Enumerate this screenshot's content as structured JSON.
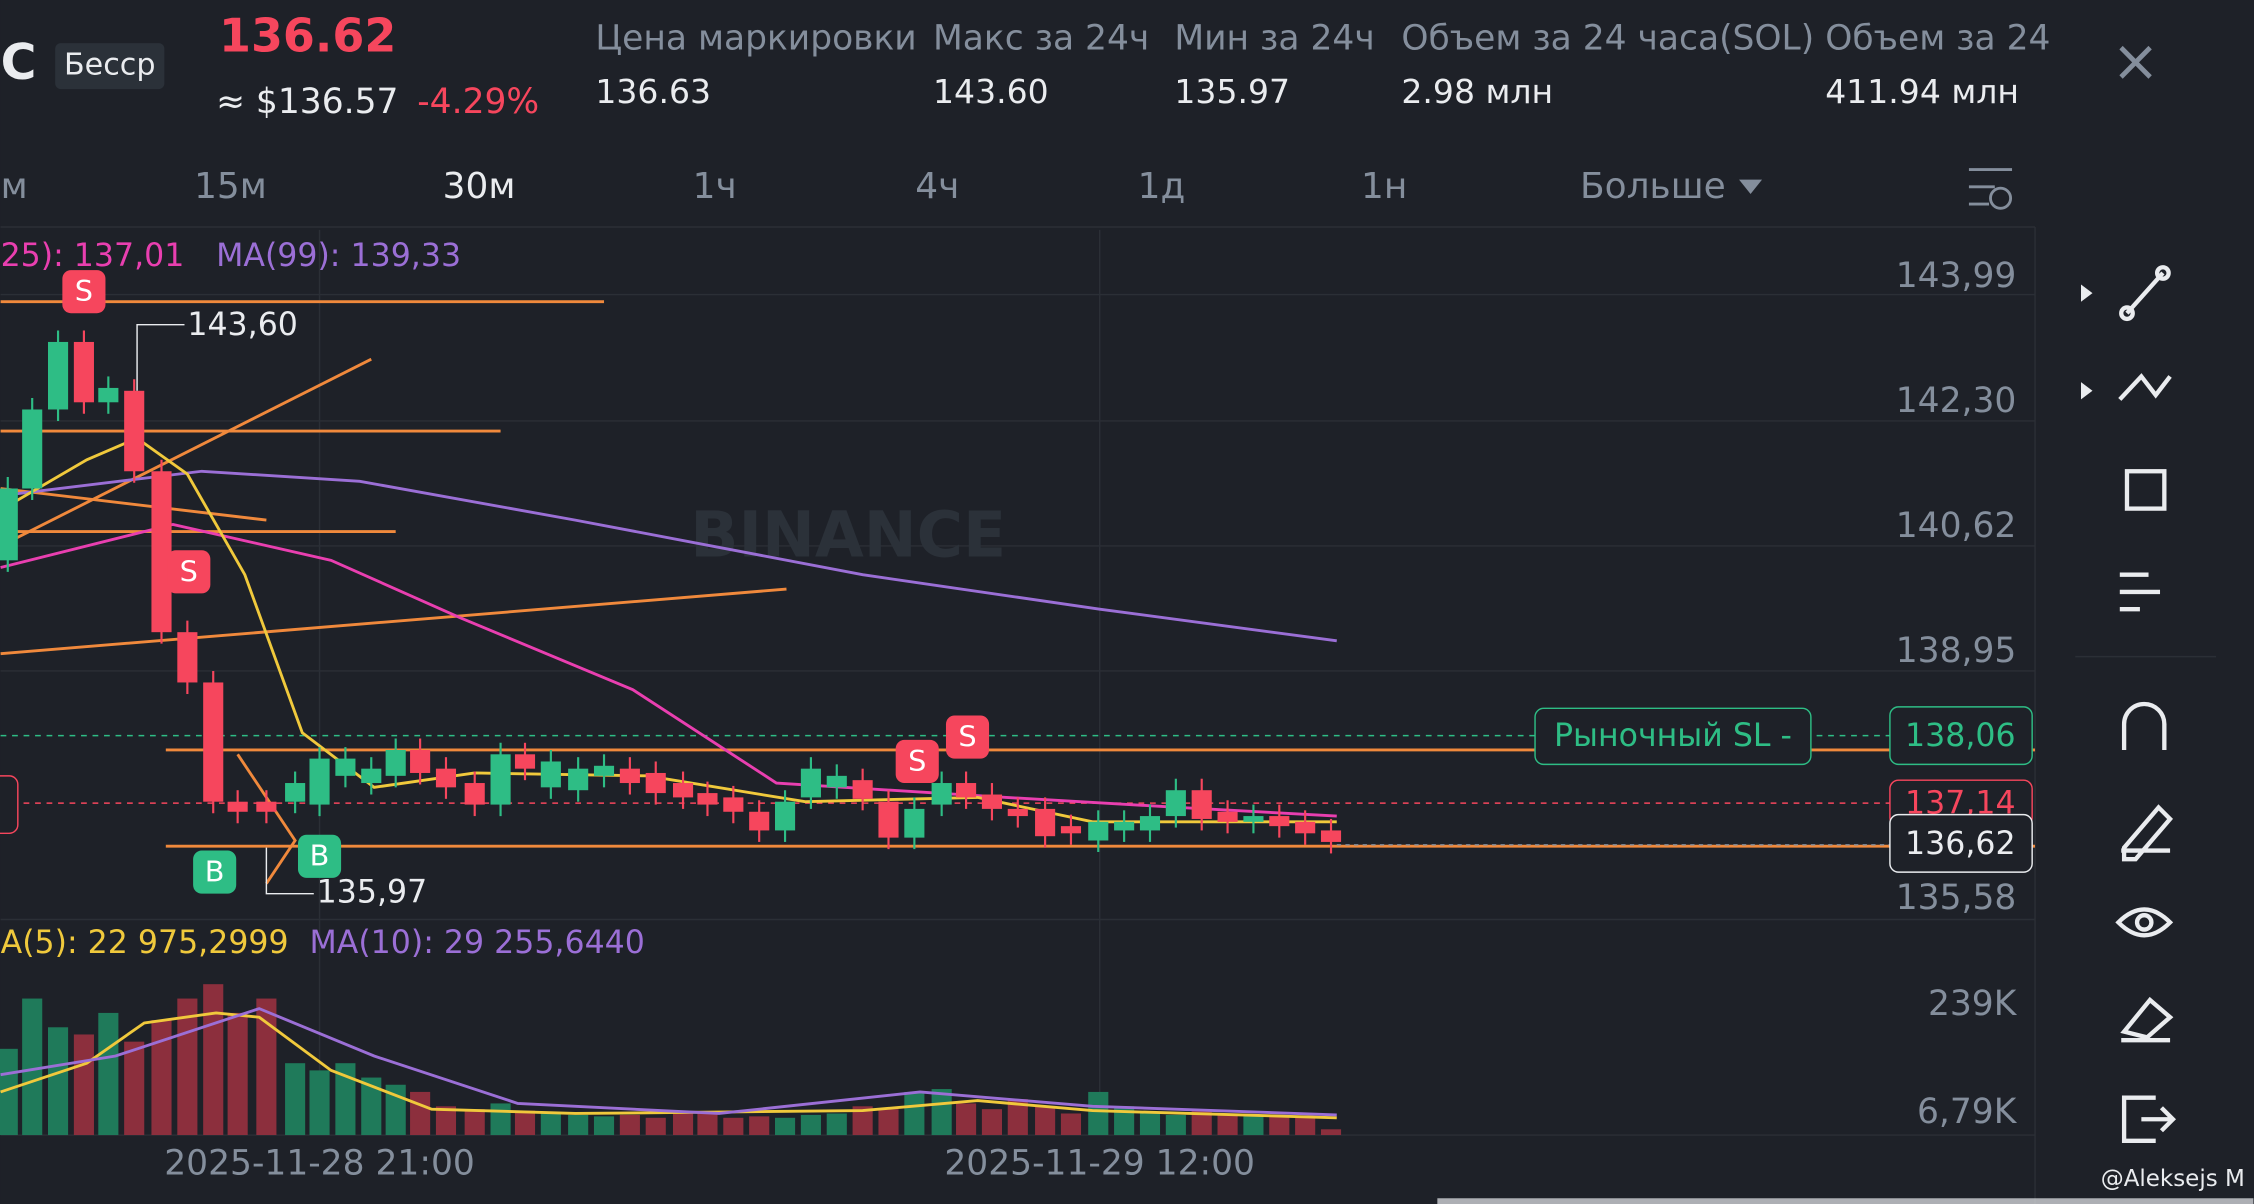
{
  "header": {
    "symbol": "C",
    "mode": "Бесср",
    "price": "136.62",
    "usd": "≈ $136.57",
    "change": "-4.29%",
    "stats": [
      {
        "label": "Цена маркировки",
        "value": "136.63"
      },
      {
        "label": "Макс за 24ч",
        "value": "143.60"
      },
      {
        "label": "Мин за 24ч",
        "value": "135.97"
      },
      {
        "label": "Объем за 24 часа(SOL)",
        "value": "2.98 млн"
      },
      {
        "label": "Объем за 24",
        "value": "411.94 млн"
      }
    ]
  },
  "intervals": [
    "м",
    "15м",
    "30м",
    "1ч",
    "4ч",
    "1д",
    "1н",
    "Больше"
  ],
  "indicators": {
    "ma25": "25): 137,01",
    "ma99": "MA(99): 139,33",
    "vol_ma5": "A(5): 22 975,2999",
    "vol_ma10": "MA(10): 29 255,6440"
  },
  "price_axis": [
    "143,99",
    "142,30",
    "140,62",
    "138,95",
    "135,58"
  ],
  "volume_axis": [
    "239K",
    "6,79K"
  ],
  "labels": {
    "high": "143,60",
    "low": "135,97",
    "sl": "Рыночный SL -",
    "sl_price": "138,06",
    "order_price": "137,14",
    "current": "136,62"
  },
  "markers": {
    "sell": "S",
    "buy": "B"
  },
  "dates": [
    "2025-11-28 21:00",
    "2025-11-29 12:00"
  ],
  "watermark": "BINANCE",
  "user": "@Aleksejs M"
}
